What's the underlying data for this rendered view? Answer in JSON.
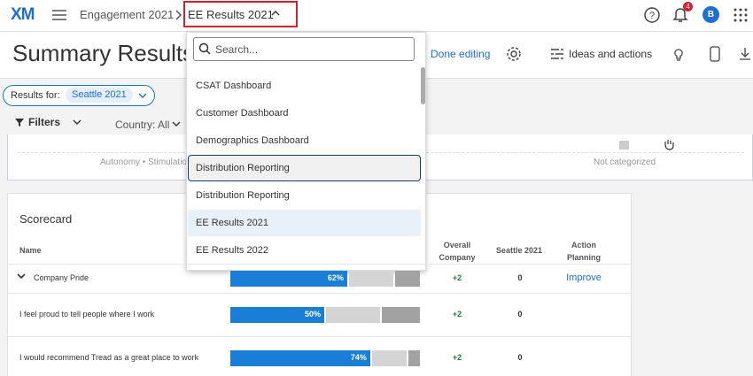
{
  "header": {
    "logo": "XM",
    "breadcrumb": "Engagement 2021",
    "current": "EE Results 2021",
    "notifications": "4",
    "avatar": "B"
  },
  "toolbar": {
    "title": "Summary Results",
    "done_editing": "Done editing",
    "ideas": "Ideas and actions"
  },
  "filters": {
    "results_for": "Results for:",
    "results_value": "Seattle 2021",
    "filters": "Filters",
    "country": "Country: All"
  },
  "background_widget": {
    "left": "Autonomy • Stimulation",
    "right": "Not categorized"
  },
  "dropdown": {
    "search_placeholder": "Search...",
    "items": [
      "CSAT Dashboard",
      "Customer Dashboard",
      "Demographics Dashboard",
      "Distribution Reporting",
      "Distribution Reporting",
      "EE Results 2021",
      "EE Results 2022"
    ],
    "focused": 3,
    "selected": 5
  },
  "scorecard": {
    "title": "Scorecard",
    "columns": {
      "name": "Name",
      "overall": "Overall Company",
      "seattle": "Seattle 2021",
      "action": "Action Planning"
    },
    "rows": [
      {
        "name": "Company Pride",
        "favorable": {
          "value": 62,
          "label": "62%"
        },
        "neutral": 24,
        "unfavorable": 14,
        "overall": "+2",
        "seattle": 0,
        "action": "Improve"
      },
      {
        "name": "I feel proud to tell people where I work",
        "favorable": {
          "value": 50,
          "label": "50%"
        },
        "neutral": 29,
        "unfavorable": 21,
        "overall": "+2",
        "seattle": 0
      },
      {
        "name": "I would recommend Tread as a great place to work",
        "favorable": {
          "value": 74,
          "label": "74%"
        },
        "neutral": 19,
        "unfavorable": 7,
        "overall": "+2",
        "seattle": 0
      }
    ]
  }
}
